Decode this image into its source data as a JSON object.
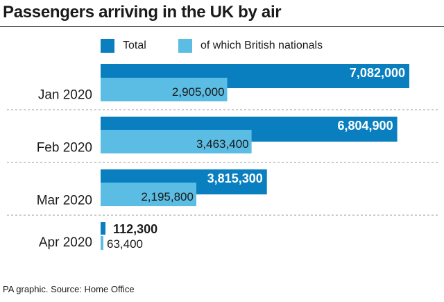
{
  "chart_data": {
    "type": "bar",
    "orientation": "horizontal",
    "title": "Passengers arriving in the UK by air",
    "categories": [
      "Jan 2020",
      "Feb 2020",
      "Mar 2020",
      "Apr 2020"
    ],
    "series": [
      {
        "name": "Total",
        "color": "#0a7fc0",
        "values": [
          7082000,
          6804900,
          3815300,
          112300
        ],
        "labels": [
          "7,082,000",
          "6,804,900",
          "3,815,300",
          "112,300"
        ]
      },
      {
        "name": "of which British nationals",
        "color": "#5bbde4",
        "values": [
          2905000,
          3463400,
          2195800,
          63400
        ],
        "labels": [
          "2,905,000",
          "3,463,400",
          "2,195,800",
          "63,400"
        ]
      }
    ],
    "legend": "top",
    "grid": false,
    "source": "PA graphic. Source: Home Office"
  }
}
